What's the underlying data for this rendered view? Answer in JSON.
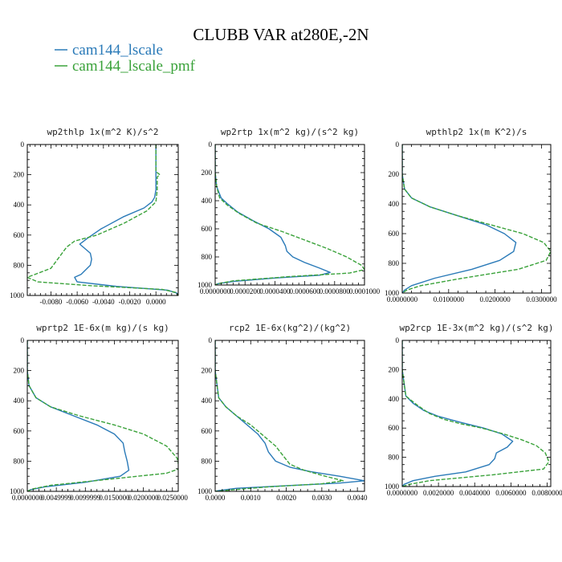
{
  "figure": {
    "title": "CLUBB VAR at280E,-2N",
    "legend": [
      {
        "label": "cam144_lscale",
        "color": "#2a7ab8"
      },
      {
        "label": "cam144_lscale_pmf",
        "color": "#3aa23a"
      }
    ]
  },
  "chart_data": [
    {
      "type": "line",
      "title": "wp2thlp   1x(m^2 K)/s^2",
      "xlim": [
        -0.0098,
        0.0017
      ],
      "ylim": [
        0,
        1000
      ],
      "y_reversed": true,
      "xticks": [
        -0.008,
        -0.006,
        -0.004,
        -0.002,
        0.0
      ],
      "xtick_labels": [
        "-0.0080",
        "-0.0060",
        "-0.0040",
        "-0.0020",
        "0.0000"
      ],
      "yticks": [
        0,
        200,
        400,
        600,
        800,
        1000
      ],
      "ytick_labels": [
        "0",
        "200",
        "400",
        "600",
        "800",
        "1000"
      ],
      "series": [
        {
          "name": "cam144_lscale",
          "color": "#2a7ab8",
          "x": [
            0.0,
            0.0,
            0.0,
            0.0,
            -0.0001,
            -0.0003,
            -0.0009,
            -0.0025,
            -0.0042,
            -0.0052,
            -0.0058,
            -0.005,
            -0.0049,
            -0.005,
            -0.0057,
            -0.0062,
            -0.006,
            -0.003,
            0.0009,
            0.0016,
            0.0017
          ],
          "y": [
            0,
            100,
            200,
            300,
            350,
            380,
            420,
            480,
            560,
            620,
            660,
            720,
            760,
            800,
            860,
            880,
            910,
            940,
            965,
            985,
            1000
          ]
        },
        {
          "name": "cam144_lscale_pmf",
          "color": "#3aa23a",
          "x": [
            0.0,
            0.0,
            0.0,
            0.0003,
            0.0001,
            0.0001,
            0.0,
            -0.0007,
            -0.0024,
            -0.0045,
            -0.0062,
            -0.0068,
            -0.008,
            -0.0098,
            -0.009,
            -0.005,
            0.0005,
            0.0015,
            0.0017
          ],
          "y": [
            0,
            100,
            180,
            200,
            215,
            300,
            380,
            440,
            520,
            600,
            640,
            680,
            820,
            880,
            910,
            935,
            960,
            980,
            1000
          ]
        }
      ]
    },
    {
      "type": "line",
      "title": "wp2rtp   1x(m^2 kg)/(s^2 kg)",
      "xlim": [
        0.0,
        0.0001
      ],
      "ylim": [
        0,
        1000
      ],
      "y_reversed": true,
      "xticks": [
        0.0,
        2e-05,
        4e-05,
        6e-05,
        8e-05,
        0.0001
      ],
      "xtick_labels": [
        "0.0000000",
        "0.0000200",
        "0.0000400",
        "0.0000600",
        "0.0000800",
        "0.0001000"
      ],
      "yticks": [
        0,
        200,
        400,
        600,
        800,
        1000
      ],
      "ytick_labels": [
        "0",
        "200",
        "400",
        "600",
        "800",
        "1000"
      ],
      "series": [
        {
          "name": "cam144_lscale",
          "color": "#2a7ab8",
          "x": [
            0.0,
            0.0,
            1e-06,
            4e-06,
            8e-06,
            1.5e-05,
            2.5e-05,
            3.6e-05,
            4.4e-05,
            4.7e-05,
            4.8e-05,
            5.2e-05,
            6e-05,
            7e-05,
            7.7e-05,
            7e-05,
            4e-05,
            1.2e-05,
            2e-06,
            0.0
          ],
          "y": [
            0,
            200,
            300,
            380,
            420,
            480,
            540,
            600,
            660,
            720,
            760,
            800,
            840,
            880,
            910,
            930,
            950,
            975,
            990,
            1000
          ]
        },
        {
          "name": "cam144_lscale_pmf",
          "color": "#3aa23a",
          "x": [
            0.0,
            0.0,
            1e-06,
            3e-06,
            8e-06,
            1.6e-05,
            2.8e-05,
            4.5e-05,
            6e-05,
            7.5e-05,
            8.8e-05,
            9.8e-05,
            0.0001,
            9e-05,
            5e-05,
            1.2e-05,
            2e-06,
            0.0
          ],
          "y": [
            0,
            200,
            300,
            380,
            430,
            490,
            560,
            620,
            680,
            740,
            800,
            860,
            890,
            915,
            940,
            970,
            990,
            1000
          ]
        }
      ]
    },
    {
      "type": "line",
      "title": "wpthlp2   1x(m K^2)/s",
      "xlim": [
        0.0,
        0.032
      ],
      "ylim": [
        0,
        1000
      ],
      "y_reversed": true,
      "xticks": [
        0.0,
        0.01,
        0.02,
        0.03
      ],
      "xtick_labels": [
        "0.0000000",
        "0.0100000",
        "0.0200000",
        "0.0300000"
      ],
      "yticks": [
        0,
        200,
        400,
        600,
        800,
        1000
      ],
      "ytick_labels": [
        "0",
        "200",
        "400",
        "600",
        "800",
        "1000"
      ],
      "series": [
        {
          "name": "cam144_lscale",
          "color": "#2a7ab8",
          "x": [
            0.0,
            0.0,
            0.0005,
            0.002,
            0.006,
            0.012,
            0.018,
            0.022,
            0.0245,
            0.024,
            0.021,
            0.015,
            0.007,
            0.002,
            0.0005,
            0.0
          ],
          "y": [
            0,
            200,
            300,
            360,
            420,
            480,
            540,
            600,
            660,
            720,
            780,
            840,
            900,
            950,
            980,
            1000
          ]
        },
        {
          "name": "cam144_lscale_pmf",
          "color": "#3aa23a",
          "x": [
            0.0,
            0.0,
            0.0005,
            0.002,
            0.006,
            0.012,
            0.019,
            0.026,
            0.0305,
            0.032,
            0.031,
            0.025,
            0.013,
            0.004,
            0.001,
            0.0
          ],
          "y": [
            0,
            200,
            300,
            360,
            420,
            480,
            540,
            600,
            660,
            720,
            780,
            840,
            900,
            950,
            980,
            1000
          ]
        }
      ]
    },
    {
      "type": "line",
      "title": "wprtp2   1E-6x(m kg)/(s kg)",
      "xlim": [
        0.0,
        0.026
      ],
      "ylim": [
        0,
        1000
      ],
      "y_reversed": true,
      "xticks": [
        0.0,
        0.005,
        0.01,
        0.015,
        0.02,
        0.025
      ],
      "xtick_labels": [
        "0.0000000",
        "0.0049999",
        "0.0099999",
        "0.0150000",
        "0.0200000",
        "0.0250000"
      ],
      "yticks": [
        0,
        200,
        400,
        600,
        800,
        1000
      ],
      "ytick_labels": [
        "0",
        "200",
        "400",
        "600",
        "800",
        "1000"
      ],
      "series": [
        {
          "name": "cam144_lscale",
          "color": "#2a7ab8",
          "x": [
            0.0,
            0.0,
            0.0003,
            0.0015,
            0.004,
            0.008,
            0.012,
            0.015,
            0.0165,
            0.0168,
            0.0172,
            0.0175,
            0.016,
            0.01,
            0.003,
            0.0005,
            0.0
          ],
          "y": [
            0,
            200,
            300,
            380,
            440,
            500,
            560,
            620,
            680,
            740,
            800,
            860,
            900,
            940,
            970,
            990,
            1000
          ]
        },
        {
          "name": "cam144_lscale_pmf",
          "color": "#3aa23a",
          "x": [
            0.0,
            0.0,
            0.0003,
            0.0015,
            0.004,
            0.009,
            0.015,
            0.02,
            0.024,
            0.0258,
            0.0262,
            0.024,
            0.014,
            0.004,
            0.0008,
            0.0
          ],
          "y": [
            0,
            200,
            300,
            380,
            440,
            500,
            560,
            620,
            700,
            780,
            850,
            880,
            920,
            960,
            985,
            1000
          ]
        }
      ]
    },
    {
      "type": "line",
      "title": "rcp2   1E-6x(kg^2)/(kg^2)",
      "xlim": [
        0.0,
        0.0042
      ],
      "ylim": [
        0,
        1000
      ],
      "y_reversed": true,
      "xticks": [
        0.0,
        0.001,
        0.002,
        0.003,
        0.004
      ],
      "xtick_labels": [
        "0.0000",
        "0.0010",
        "0.0020",
        "0.0030",
        "0.0040"
      ],
      "yticks": [
        0,
        200,
        400,
        600,
        800,
        1000
      ],
      "ytick_labels": [
        "0",
        "200",
        "400",
        "600",
        "800",
        "1000"
      ],
      "series": [
        {
          "name": "cam144_lscale",
          "color": "#2a7ab8",
          "x": [
            0.0,
            0.0,
            0.0001,
            0.0003,
            0.0006,
            0.0009,
            0.0012,
            0.0014,
            0.0015,
            0.0017,
            0.0021,
            0.0027,
            0.0035,
            0.0042,
            0.0035,
            0.0018,
            0.0006,
            0.0001,
            0.0
          ],
          "y": [
            0,
            200,
            380,
            440,
            500,
            560,
            620,
            680,
            740,
            800,
            840,
            870,
            900,
            930,
            945,
            965,
            980,
            995,
            1000
          ]
        },
        {
          "name": "cam144_lscale_pmf",
          "color": "#3aa23a",
          "x": [
            0.0,
            0.0,
            0.0001,
            0.0003,
            0.0006,
            0.001,
            0.0014,
            0.0017,
            0.0019,
            0.0021,
            0.0025,
            0.0031,
            0.0036,
            0.003,
            0.0015,
            0.0005,
            0.0
          ],
          "y": [
            0,
            200,
            380,
            440,
            500,
            560,
            640,
            700,
            760,
            820,
            860,
            900,
            930,
            950,
            970,
            990,
            1000
          ]
        }
      ]
    },
    {
      "type": "line",
      "title": "wp2rcp   1E-3x(m^2 kg)/(s^2 kg)",
      "xlim": [
        0.0,
        0.0082
      ],
      "ylim": [
        0,
        1000
      ],
      "y_reversed": true,
      "xticks": [
        0.0,
        0.002,
        0.004,
        0.006,
        0.008
      ],
      "xtick_labels": [
        "0.0000000",
        "0.0020000",
        "0.0040000",
        "0.0060000",
        "0.0080000"
      ],
      "yticks": [
        0,
        200,
        400,
        600,
        800,
        1000
      ],
      "ytick_labels": [
        "0",
        "200",
        "400",
        "600",
        "800",
        "1000"
      ],
      "series": [
        {
          "name": "cam144_lscale",
          "color": "#2a7ab8",
          "x": [
            0.0,
            0.0,
            0.0002,
            0.0006,
            0.0012,
            0.002,
            0.0032,
            0.0045,
            0.0055,
            0.0061,
            0.0058,
            0.0052,
            0.0051,
            0.0048,
            0.0035,
            0.0018,
            0.0006,
            0.0001,
            0.0
          ],
          "y": [
            0,
            200,
            380,
            430,
            480,
            520,
            560,
            600,
            640,
            690,
            730,
            770,
            810,
            850,
            900,
            930,
            960,
            985,
            1000
          ]
        },
        {
          "name": "cam144_lscale_pmf",
          "color": "#3aa23a",
          "x": [
            0.0,
            0.0,
            0.0002,
            0.0008,
            0.0015,
            0.0023,
            0.0032,
            0.0044,
            0.0056,
            0.0066,
            0.0074,
            0.0079,
            0.0081,
            0.0078,
            0.005,
            0.0015,
            0.0004,
            0.0
          ],
          "y": [
            0,
            200,
            380,
            440,
            500,
            540,
            570,
            600,
            640,
            680,
            720,
            770,
            830,
            880,
            920,
            960,
            985,
            1000
          ]
        }
      ]
    }
  ]
}
